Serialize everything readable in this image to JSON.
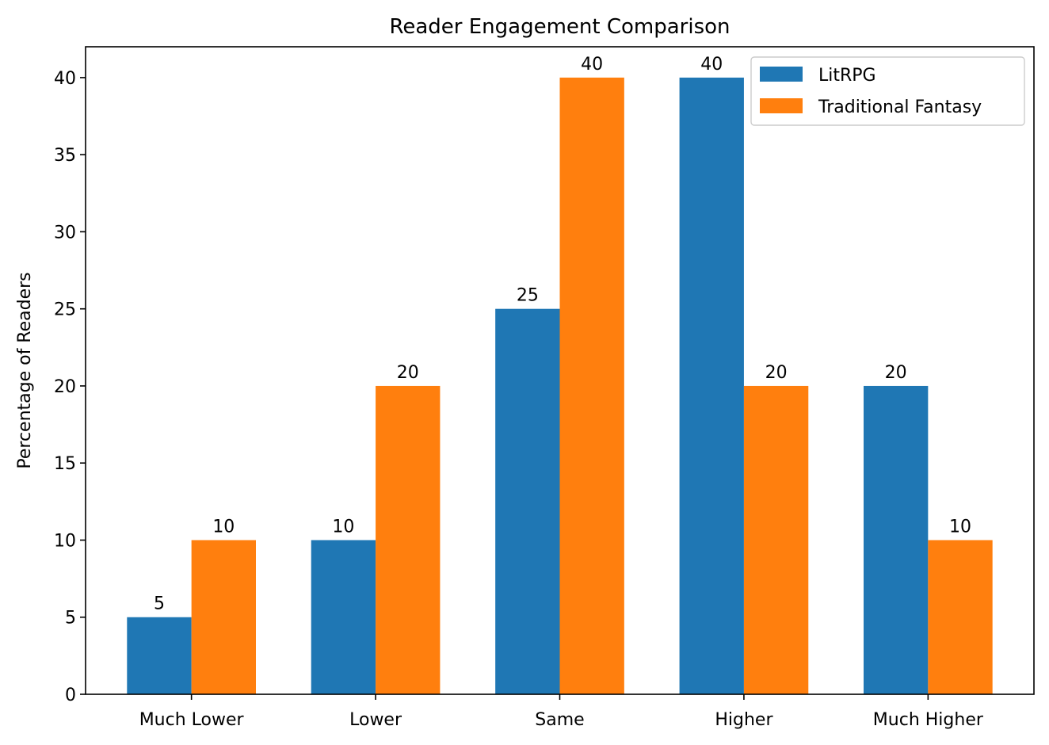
{
  "chart_data": {
    "type": "bar",
    "title": "Reader Engagement Comparison",
    "xlabel": "",
    "ylabel": "Percentage of Readers",
    "categories": [
      "Much Lower",
      "Lower",
      "Same",
      "Higher",
      "Much Higher"
    ],
    "series": [
      {
        "name": "LitRPG",
        "values": [
          5,
          10,
          25,
          40,
          20
        ],
        "color": "#1f77b4"
      },
      {
        "name": "Traditional Fantasy",
        "values": [
          10,
          20,
          40,
          20,
          10
        ],
        "color": "#ff7f0e"
      }
    ],
    "ylim": [
      0,
      42
    ],
    "yticks": [
      0,
      5,
      10,
      15,
      20,
      25,
      30,
      35,
      40
    ],
    "grid": false,
    "legend_position": "top-right",
    "data_labels": true
  }
}
